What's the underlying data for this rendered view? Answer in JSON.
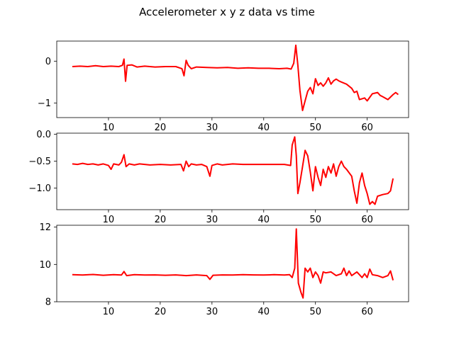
{
  "figure": {
    "title": "Accelerometer x y z data vs time"
  },
  "chart_data": [
    {
      "type": "line",
      "axis": "x",
      "xlim": [
        0.0,
        68.0
      ],
      "ylim": [
        -1.35,
        0.48
      ],
      "xticks": [
        10,
        20,
        30,
        40,
        50,
        60
      ],
      "yticks": [
        0,
        -1
      ],
      "xtick_labels": [
        "10",
        "20",
        "30",
        "40",
        "50",
        "60"
      ],
      "ytick_labels": [
        "0",
        "−1"
      ],
      "grid": false,
      "series": [
        {
          "color": "#ff0000",
          "points": [
            [
              3.0,
              -0.13
            ],
            [
              4.5,
              -0.12
            ],
            [
              6.0,
              -0.13
            ],
            [
              7.5,
              -0.11
            ],
            [
              9.0,
              -0.13
            ],
            [
              10.5,
              -0.12
            ],
            [
              12.0,
              -0.13
            ],
            [
              12.7,
              -0.1
            ],
            [
              13.0,
              0.05
            ],
            [
              13.3,
              -0.48
            ],
            [
              13.6,
              -0.1
            ],
            [
              14.5,
              -0.09
            ],
            [
              15.5,
              -0.14
            ],
            [
              17.0,
              -0.12
            ],
            [
              19.0,
              -0.14
            ],
            [
              21.0,
              -0.13
            ],
            [
              23.0,
              -0.13
            ],
            [
              24.2,
              -0.18
            ],
            [
              24.6,
              -0.35
            ],
            [
              25.0,
              0.02
            ],
            [
              25.4,
              -0.1
            ],
            [
              26.0,
              -0.18
            ],
            [
              27.0,
              -0.14
            ],
            [
              29.0,
              -0.15
            ],
            [
              31.0,
              -0.16
            ],
            [
              33.0,
              -0.15
            ],
            [
              35.0,
              -0.17
            ],
            [
              37.0,
              -0.16
            ],
            [
              39.0,
              -0.17
            ],
            [
              41.0,
              -0.17
            ],
            [
              43.0,
              -0.18
            ],
            [
              44.5,
              -0.17
            ],
            [
              45.3,
              -0.19
            ],
            [
              45.8,
              -0.05
            ],
            [
              46.2,
              0.38
            ],
            [
              46.6,
              -0.1
            ],
            [
              47.0,
              -0.7
            ],
            [
              47.5,
              -1.18
            ],
            [
              48.0,
              -0.95
            ],
            [
              48.5,
              -0.72
            ],
            [
              49.0,
              -0.63
            ],
            [
              49.5,
              -0.78
            ],
            [
              50.0,
              -0.42
            ],
            [
              50.5,
              -0.58
            ],
            [
              51.0,
              -0.52
            ],
            [
              51.5,
              -0.6
            ],
            [
              52.0,
              -0.52
            ],
            [
              52.5,
              -0.4
            ],
            [
              53.0,
              -0.55
            ],
            [
              53.5,
              -0.47
            ],
            [
              54.0,
              -0.43
            ],
            [
              54.5,
              -0.47
            ],
            [
              55.0,
              -0.5
            ],
            [
              56.0,
              -0.55
            ],
            [
              57.0,
              -0.65
            ],
            [
              57.5,
              -0.75
            ],
            [
              58.0,
              -0.72
            ],
            [
              58.5,
              -0.92
            ],
            [
              59.5,
              -0.88
            ],
            [
              60.0,
              -0.95
            ],
            [
              61.0,
              -0.78
            ],
            [
              62.0,
              -0.75
            ],
            [
              62.5,
              -0.82
            ],
            [
              63.0,
              -0.85
            ],
            [
              64.0,
              -0.92
            ],
            [
              65.0,
              -0.8
            ],
            [
              65.5,
              -0.75
            ],
            [
              66.0,
              -0.8
            ]
          ]
        }
      ]
    },
    {
      "type": "line",
      "axis": "y",
      "xlim": [
        0.0,
        68.0
      ],
      "ylim": [
        -1.4,
        0.02
      ],
      "xticks": [
        10,
        20,
        30,
        40,
        50,
        60
      ],
      "yticks": [
        0.0,
        -0.5,
        -1.0
      ],
      "xtick_labels": [
        "10",
        "20",
        "30",
        "40",
        "50",
        "60"
      ],
      "ytick_labels": [
        "0.0",
        "−0.5",
        "−1.0"
      ],
      "grid": false,
      "series": [
        {
          "color": "#ff0000",
          "points": [
            [
              3.0,
              -0.55
            ],
            [
              4.0,
              -0.56
            ],
            [
              5.0,
              -0.54
            ],
            [
              6.0,
              -0.56
            ],
            [
              7.0,
              -0.55
            ],
            [
              8.0,
              -0.57
            ],
            [
              9.0,
              -0.55
            ],
            [
              10.0,
              -0.58
            ],
            [
              10.5,
              -0.65
            ],
            [
              11.0,
              -0.55
            ],
            [
              12.0,
              -0.57
            ],
            [
              12.5,
              -0.52
            ],
            [
              13.0,
              -0.38
            ],
            [
              13.4,
              -0.6
            ],
            [
              14.0,
              -0.55
            ],
            [
              15.0,
              -0.57
            ],
            [
              16.0,
              -0.55
            ],
            [
              18.0,
              -0.57
            ],
            [
              20.0,
              -0.56
            ],
            [
              22.0,
              -0.57
            ],
            [
              24.0,
              -0.56
            ],
            [
              24.5,
              -0.68
            ],
            [
              25.0,
              -0.5
            ],
            [
              25.5,
              -0.6
            ],
            [
              26.0,
              -0.55
            ],
            [
              27.0,
              -0.57
            ],
            [
              28.0,
              -0.56
            ],
            [
              29.0,
              -0.6
            ],
            [
              29.6,
              -0.78
            ],
            [
              30.0,
              -0.58
            ],
            [
              31.0,
              -0.55
            ],
            [
              32.0,
              -0.57
            ],
            [
              34.0,
              -0.55
            ],
            [
              36.0,
              -0.56
            ],
            [
              38.0,
              -0.56
            ],
            [
              40.0,
              -0.56
            ],
            [
              42.0,
              -0.56
            ],
            [
              44.0,
              -0.56
            ],
            [
              45.2,
              -0.58
            ],
            [
              45.5,
              -0.2
            ],
            [
              46.0,
              -0.05
            ],
            [
              46.3,
              -0.4
            ],
            [
              46.6,
              -1.1
            ],
            [
              47.0,
              -0.9
            ],
            [
              47.5,
              -0.6
            ],
            [
              48.0,
              -0.3
            ],
            [
              48.5,
              -0.4
            ],
            [
              49.0,
              -0.7
            ],
            [
              49.5,
              -1.05
            ],
            [
              50.0,
              -0.6
            ],
            [
              50.5,
              -0.8
            ],
            [
              51.0,
              -0.95
            ],
            [
              51.5,
              -0.65
            ],
            [
              52.0,
              -0.8
            ],
            [
              52.5,
              -0.6
            ],
            [
              53.0,
              -0.72
            ],
            [
              53.5,
              -0.55
            ],
            [
              54.0,
              -0.78
            ],
            [
              54.5,
              -0.6
            ],
            [
              55.0,
              -0.5
            ],
            [
              55.5,
              -0.6
            ],
            [
              56.0,
              -0.65
            ],
            [
              57.0,
              -0.78
            ],
            [
              57.5,
              -1.05
            ],
            [
              58.0,
              -1.28
            ],
            [
              58.5,
              -0.9
            ],
            [
              59.0,
              -0.72
            ],
            [
              59.5,
              -0.95
            ],
            [
              60.0,
              -1.1
            ],
            [
              60.5,
              -1.3
            ],
            [
              61.0,
              -1.25
            ],
            [
              61.5,
              -1.3
            ],
            [
              62.0,
              -1.15
            ],
            [
              63.0,
              -1.12
            ],
            [
              64.0,
              -1.1
            ],
            [
              64.5,
              -1.05
            ],
            [
              65.0,
              -0.82
            ]
          ]
        }
      ]
    },
    {
      "type": "line",
      "axis": "z",
      "xlim": [
        0.0,
        68.0
      ],
      "ylim": [
        8.0,
        12.1
      ],
      "xticks": [
        10,
        20,
        30,
        40,
        50,
        60
      ],
      "yticks": [
        12,
        10,
        8
      ],
      "xtick_labels": [
        "10",
        "20",
        "30",
        "40",
        "50",
        "60"
      ],
      "ytick_labels": [
        "12",
        "10",
        "8"
      ],
      "grid": false,
      "series": [
        {
          "color": "#ff0000",
          "points": [
            [
              3.0,
              9.45
            ],
            [
              5.0,
              9.43
            ],
            [
              7.0,
              9.46
            ],
            [
              9.0,
              9.42
            ],
            [
              11.0,
              9.45
            ],
            [
              12.5,
              9.43
            ],
            [
              13.0,
              9.62
            ],
            [
              13.5,
              9.4
            ],
            [
              15.0,
              9.45
            ],
            [
              17.0,
              9.43
            ],
            [
              19.0,
              9.44
            ],
            [
              21.0,
              9.42
            ],
            [
              23.0,
              9.44
            ],
            [
              25.0,
              9.4
            ],
            [
              27.0,
              9.44
            ],
            [
              29.0,
              9.4
            ],
            [
              29.6,
              9.2
            ],
            [
              30.2,
              9.42
            ],
            [
              32.0,
              9.44
            ],
            [
              34.0,
              9.43
            ],
            [
              36.0,
              9.45
            ],
            [
              38.0,
              9.44
            ],
            [
              40.0,
              9.43
            ],
            [
              42.0,
              9.45
            ],
            [
              44.0,
              9.43
            ],
            [
              45.0,
              9.45
            ],
            [
              45.5,
              9.3
            ],
            [
              46.0,
              9.8
            ],
            [
              46.3,
              11.9
            ],
            [
              46.7,
              9.0
            ],
            [
              47.2,
              8.5
            ],
            [
              47.6,
              8.2
            ],
            [
              48.0,
              9.8
            ],
            [
              48.5,
              9.6
            ],
            [
              49.0,
              9.8
            ],
            [
              49.5,
              9.3
            ],
            [
              50.0,
              9.6
            ],
            [
              50.5,
              9.4
            ],
            [
              51.0,
              9.0
            ],
            [
              51.5,
              9.6
            ],
            [
              52.0,
              9.55
            ],
            [
              53.0,
              9.6
            ],
            [
              54.0,
              9.4
            ],
            [
              55.0,
              9.5
            ],
            [
              55.5,
              9.8
            ],
            [
              56.0,
              9.4
            ],
            [
              56.5,
              9.65
            ],
            [
              57.0,
              9.4
            ],
            [
              58.0,
              9.6
            ],
            [
              59.0,
              9.3
            ],
            [
              59.5,
              9.5
            ],
            [
              60.0,
              9.3
            ],
            [
              60.5,
              9.75
            ],
            [
              61.0,
              9.45
            ],
            [
              62.0,
              9.4
            ],
            [
              63.0,
              9.3
            ],
            [
              64.0,
              9.4
            ],
            [
              64.5,
              9.65
            ],
            [
              65.0,
              9.15
            ]
          ]
        }
      ]
    }
  ]
}
